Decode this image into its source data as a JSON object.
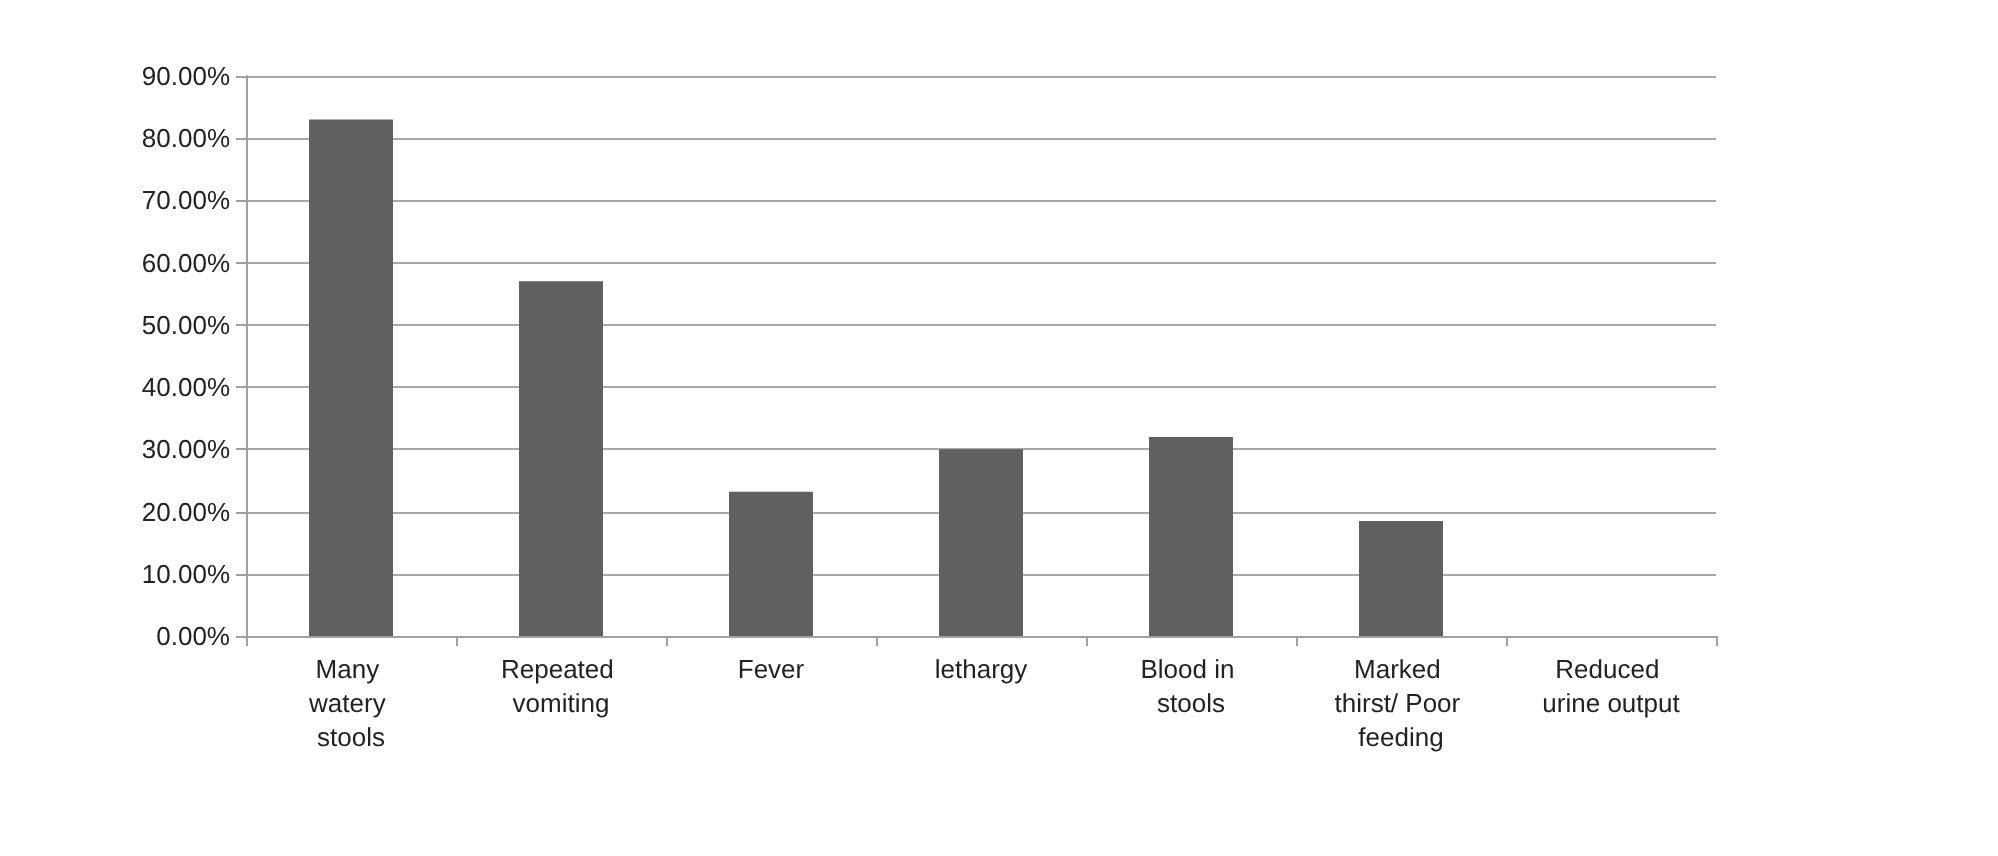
{
  "chart_data": {
    "type": "bar",
    "categories": [
      "Many watery stools",
      "Repeated vomiting",
      "Fever",
      "lethargy",
      "Blood in stools",
      "Marked thirst/ Poor feeding",
      "Reduced urine output"
    ],
    "values": [
      83,
      57,
      23.2,
      30,
      32,
      18.5,
      0
    ],
    "color": "#606060",
    "ylim": [
      0,
      90
    ],
    "yticks": [
      {
        "value": 0,
        "label": "0.00%"
      },
      {
        "value": 10,
        "label": "10.00%"
      },
      {
        "value": 20,
        "label": "20.00%"
      },
      {
        "value": 30,
        "label": "30.00%"
      },
      {
        "value": 40,
        "label": "40.00%"
      },
      {
        "value": 50,
        "label": "50.00%"
      },
      {
        "value": 60,
        "label": "60.00%"
      },
      {
        "value": 70,
        "label": "70.00%"
      },
      {
        "value": 80,
        "label": "80.00%"
      },
      {
        "value": 90,
        "label": "90.00%"
      }
    ],
    "grid": "y"
  }
}
